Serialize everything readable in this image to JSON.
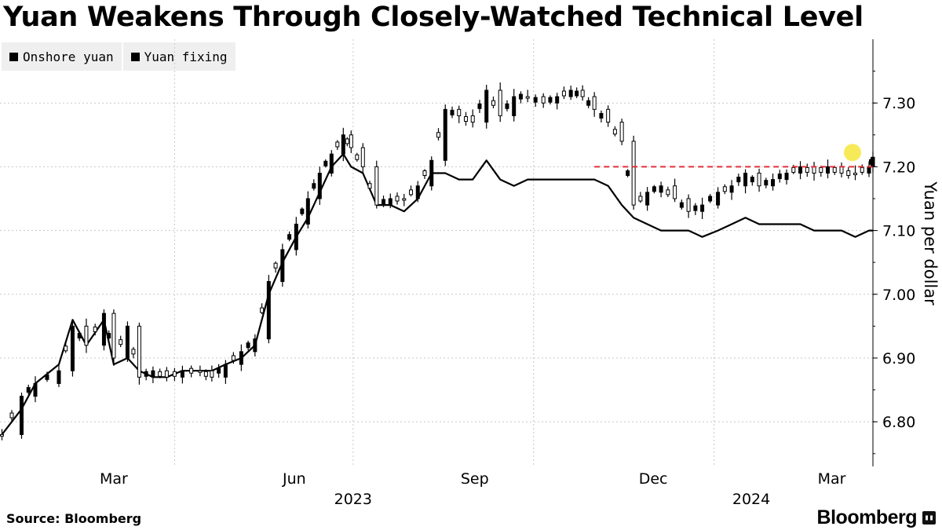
{
  "chart_data": {
    "type": "line",
    "title": "Yuan Weakens Through Closely-Watched Technical Level",
    "ylabel": "Yuan per dollar",
    "ylim": [
      6.73,
      7.4
    ],
    "yticks": [
      6.8,
      6.9,
      7.0,
      7.1,
      7.2,
      7.3
    ],
    "ytick_labels": [
      "6.80",
      "6.90",
      "7.00",
      "7.10",
      "7.20",
      "7.30"
    ],
    "xlim": [
      "2023-01-02",
      "2024-03-22"
    ],
    "xticks": [
      {
        "date": "2023-03-01",
        "label": "Mar"
      },
      {
        "date": "2023-06-01",
        "label": "Jun"
      },
      {
        "date": "2023-09-01",
        "label": "Sep"
      },
      {
        "date": "2023-12-01",
        "label": "Dec"
      },
      {
        "date": "2024-03-01",
        "label": "Mar"
      }
    ],
    "year_labels": [
      {
        "date": "2023-07-01",
        "label": "2023"
      },
      {
        "date": "2024-01-20",
        "label": "2024"
      }
    ],
    "grid": true,
    "legend_position": "top-left",
    "reference_line": {
      "value": 7.2,
      "start": "2023-11-01",
      "color": "#e0303a",
      "style": "dashed"
    },
    "highlight_point": {
      "date": "2024-03-22",
      "value": 7.215,
      "color": "#f5e63c"
    },
    "series": [
      {
        "name": "Onshore yuan",
        "style": "candlestick",
        "color": "#000000",
        "points": [
          [
            "2023-01-03",
            6.78
          ],
          [
            "2023-01-13",
            6.84
          ],
          [
            "2023-01-20",
            6.86
          ],
          [
            "2023-02-01",
            6.88
          ],
          [
            "2023-02-08",
            6.95
          ],
          [
            "2023-02-15",
            6.92
          ],
          [
            "2023-02-24",
            6.97
          ],
          [
            "2023-03-01",
            6.9
          ],
          [
            "2023-03-08",
            6.95
          ],
          [
            "2023-03-14",
            6.87
          ],
          [
            "2023-03-21",
            6.88
          ],
          [
            "2023-03-28",
            6.87
          ],
          [
            "2023-04-05",
            6.88
          ],
          [
            "2023-04-14",
            6.88
          ],
          [
            "2023-04-20",
            6.87
          ],
          [
            "2023-04-27",
            6.89
          ],
          [
            "2023-05-05",
            6.91
          ],
          [
            "2023-05-12",
            6.93
          ],
          [
            "2023-05-19",
            7.02
          ],
          [
            "2023-05-26",
            7.07
          ],
          [
            "2023-06-02",
            7.11
          ],
          [
            "2023-06-08",
            7.15
          ],
          [
            "2023-06-14",
            7.19
          ],
          [
            "2023-06-20",
            7.22
          ],
          [
            "2023-06-26",
            7.25
          ],
          [
            "2023-06-30",
            7.23
          ],
          [
            "2023-07-06",
            7.2
          ],
          [
            "2023-07-13",
            7.14
          ],
          [
            "2023-07-20",
            7.15
          ],
          [
            "2023-07-27",
            7.15
          ],
          [
            "2023-08-03",
            7.17
          ],
          [
            "2023-08-10",
            7.21
          ],
          [
            "2023-08-17",
            7.29
          ],
          [
            "2023-08-24",
            7.28
          ],
          [
            "2023-08-31",
            7.27
          ],
          [
            "2023-09-07",
            7.32
          ],
          [
            "2023-09-14",
            7.28
          ],
          [
            "2023-09-21",
            7.31
          ],
          [
            "2023-09-28",
            7.31
          ],
          [
            "2023-10-06",
            7.3
          ],
          [
            "2023-10-13",
            7.31
          ],
          [
            "2023-10-20",
            7.32
          ],
          [
            "2023-10-26",
            7.31
          ],
          [
            "2023-11-01",
            7.29
          ],
          [
            "2023-11-08",
            7.27
          ],
          [
            "2023-11-15",
            7.24
          ],
          [
            "2023-11-21",
            7.14
          ],
          [
            "2023-11-28",
            7.16
          ],
          [
            "2023-12-05",
            7.17
          ],
          [
            "2023-12-12",
            7.15
          ],
          [
            "2023-12-19",
            7.13
          ],
          [
            "2023-12-26",
            7.14
          ],
          [
            "2024-01-03",
            7.16
          ],
          [
            "2024-01-10",
            7.17
          ],
          [
            "2024-01-17",
            7.19
          ],
          [
            "2024-01-24",
            7.17
          ],
          [
            "2024-01-31",
            7.18
          ],
          [
            "2024-02-07",
            7.19
          ],
          [
            "2024-02-14",
            7.2
          ],
          [
            "2024-02-21",
            7.19
          ],
          [
            "2024-02-28",
            7.2
          ],
          [
            "2024-03-06",
            7.19
          ],
          [
            "2024-03-13",
            7.19
          ],
          [
            "2024-03-20",
            7.2
          ],
          [
            "2024-03-22",
            7.215
          ]
        ]
      },
      {
        "name": "Yuan fixing",
        "style": "line",
        "color": "#000000",
        "points": [
          [
            "2023-01-03",
            6.78
          ],
          [
            "2023-01-13",
            6.82
          ],
          [
            "2023-01-20",
            6.86
          ],
          [
            "2023-02-01",
            6.89
          ],
          [
            "2023-02-08",
            6.96
          ],
          [
            "2023-02-15",
            6.92
          ],
          [
            "2023-02-24",
            6.96
          ],
          [
            "2023-03-01",
            6.89
          ],
          [
            "2023-03-08",
            6.9
          ],
          [
            "2023-03-14",
            6.88
          ],
          [
            "2023-03-21",
            6.87
          ],
          [
            "2023-03-28",
            6.87
          ],
          [
            "2023-04-05",
            6.88
          ],
          [
            "2023-04-14",
            6.88
          ],
          [
            "2023-04-20",
            6.88
          ],
          [
            "2023-04-27",
            6.89
          ],
          [
            "2023-05-05",
            6.9
          ],
          [
            "2023-05-12",
            6.92
          ],
          [
            "2023-05-19",
            7.0
          ],
          [
            "2023-05-26",
            7.05
          ],
          [
            "2023-06-02",
            7.09
          ],
          [
            "2023-06-08",
            7.12
          ],
          [
            "2023-06-14",
            7.16
          ],
          [
            "2023-06-20",
            7.2
          ],
          [
            "2023-06-26",
            7.22
          ],
          [
            "2023-06-30",
            7.2
          ],
          [
            "2023-07-06",
            7.19
          ],
          [
            "2023-07-13",
            7.14
          ],
          [
            "2023-07-20",
            7.14
          ],
          [
            "2023-07-27",
            7.13
          ],
          [
            "2023-08-03",
            7.15
          ],
          [
            "2023-08-10",
            7.19
          ],
          [
            "2023-08-17",
            7.19
          ],
          [
            "2023-08-24",
            7.18
          ],
          [
            "2023-08-31",
            7.18
          ],
          [
            "2023-09-07",
            7.21
          ],
          [
            "2023-09-14",
            7.18
          ],
          [
            "2023-09-21",
            7.17
          ],
          [
            "2023-09-28",
            7.18
          ],
          [
            "2023-10-06",
            7.18
          ],
          [
            "2023-10-13",
            7.18
          ],
          [
            "2023-10-20",
            7.18
          ],
          [
            "2023-10-26",
            7.18
          ],
          [
            "2023-11-01",
            7.18
          ],
          [
            "2023-11-08",
            7.17
          ],
          [
            "2023-11-15",
            7.14
          ],
          [
            "2023-11-21",
            7.12
          ],
          [
            "2023-11-28",
            7.11
          ],
          [
            "2023-12-05",
            7.1
          ],
          [
            "2023-12-12",
            7.1
          ],
          [
            "2023-12-19",
            7.1
          ],
          [
            "2023-12-26",
            7.09
          ],
          [
            "2024-01-03",
            7.1
          ],
          [
            "2024-01-10",
            7.11
          ],
          [
            "2024-01-17",
            7.12
          ],
          [
            "2024-01-24",
            7.11
          ],
          [
            "2024-01-31",
            7.11
          ],
          [
            "2024-02-07",
            7.11
          ],
          [
            "2024-02-14",
            7.11
          ],
          [
            "2024-02-21",
            7.1
          ],
          [
            "2024-02-28",
            7.1
          ],
          [
            "2024-03-06",
            7.1
          ],
          [
            "2024-03-13",
            7.09
          ],
          [
            "2024-03-20",
            7.1
          ],
          [
            "2024-03-22",
            7.1
          ]
        ]
      }
    ]
  },
  "legend": {
    "items": [
      {
        "label": "Onshore yuan",
        "color": "#000000"
      },
      {
        "label": "Yuan fixing",
        "color": "#000000"
      }
    ]
  },
  "footer": {
    "source": "Source: Bloomberg",
    "brand": "Bloomberg"
  }
}
